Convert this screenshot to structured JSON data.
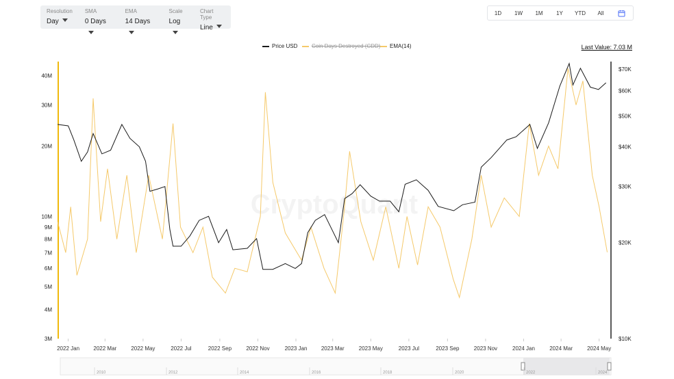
{
  "controls": [
    {
      "label": "Resolution",
      "value": "Day"
    },
    {
      "label": "SMA",
      "value": "0 Days"
    },
    {
      "label": "EMA",
      "value": "14 Days"
    },
    {
      "label": "Scale",
      "value": "Log"
    },
    {
      "label": "Chart Type",
      "value": "Line"
    }
  ],
  "range_buttons": [
    "1D",
    "1W",
    "1M",
    "1Y",
    "YTD",
    "All"
  ],
  "legend": [
    {
      "name": "Price USD",
      "color": "#1a1a1a",
      "disabled": false
    },
    {
      "name": "Coin Days Destroyed (CDD)",
      "color": "#f5c96a",
      "disabled": true
    },
    {
      "name": "EMA(14)",
      "color": "#f5c96a",
      "disabled": false
    }
  ],
  "last_value": "Last Value: 7.03 M",
  "watermark": "CryptoQuant",
  "navigator_labels": [
    "2010",
    "2012",
    "2014",
    "2016",
    "2018",
    "2020",
    "2022",
    "2024"
  ],
  "colors": {
    "price": "#1a1a1a",
    "ema": "#f5c96a",
    "left_axis_line": "#f0b90b",
    "right_axis_line": "#222222"
  },
  "chart_data": {
    "type": "line",
    "scale": "log",
    "x_ticks": [
      "2022 Jan",
      "2022 Mar",
      "2022 May",
      "2022 Jul",
      "2022 Sep",
      "2022 Nov",
      "2023 Jan",
      "2023 Mar",
      "2023 May",
      "2023 Jul",
      "2023 Sep",
      "2023 Nov",
      "2024 Jan",
      "2024 Mar",
      "2024 May"
    ],
    "x_tick_dates": [
      "2022-01",
      "2022-03",
      "2022-05",
      "2022-07",
      "2022-09",
      "2022-11",
      "2023-01",
      "2023-03",
      "2023-05",
      "2023-07",
      "2023-09",
      "2023-11",
      "2024-01",
      "2024-03",
      "2024-05"
    ],
    "left_axis": {
      "ticks": [
        "3M",
        "4M",
        "5M",
        "6M",
        "7M",
        "8M",
        "9M",
        "10M",
        "20M",
        "30M",
        "40M"
      ],
      "tick_values": [
        3000000,
        4000000,
        5000000,
        6000000,
        7000000,
        8000000,
        9000000,
        10000000,
        20000000,
        30000000,
        40000000
      ],
      "range": [
        3000000,
        46000000
      ]
    },
    "right_axis": {
      "ticks": [
        "$10K",
        "$20K",
        "$30K",
        "$40K",
        "$50K",
        "$60K",
        "$70K"
      ],
      "tick_values": [
        10000,
        20000,
        30000,
        40000,
        50000,
        60000,
        70000
      ],
      "range": [
        10000,
        74000
      ]
    },
    "series": [
      {
        "name": "Price USD",
        "axis": "right",
        "points": [
          [
            "2021-12-15",
            47000
          ],
          [
            "2022-01-01",
            46500
          ],
          [
            "2022-01-10",
            42000
          ],
          [
            "2022-01-22",
            36000
          ],
          [
            "2022-02-01",
            38500
          ],
          [
            "2022-02-10",
            44000
          ],
          [
            "2022-02-24",
            38000
          ],
          [
            "2022-03-10",
            39000
          ],
          [
            "2022-03-28",
            47000
          ],
          [
            "2022-04-10",
            42500
          ],
          [
            "2022-04-25",
            40000
          ],
          [
            "2022-05-05",
            36000
          ],
          [
            "2022-05-12",
            29000
          ],
          [
            "2022-05-25",
            29500
          ],
          [
            "2022-06-05",
            30000
          ],
          [
            "2022-06-13",
            22000
          ],
          [
            "2022-06-18",
            19500
          ],
          [
            "2022-07-01",
            19500
          ],
          [
            "2022-07-15",
            21000
          ],
          [
            "2022-07-30",
            23500
          ],
          [
            "2022-08-14",
            24200
          ],
          [
            "2022-08-30",
            20000
          ],
          [
            "2022-09-12",
            22000
          ],
          [
            "2022-09-22",
            19000
          ],
          [
            "2022-10-15",
            19200
          ],
          [
            "2022-10-30",
            20600
          ],
          [
            "2022-11-09",
            16500
          ],
          [
            "2022-11-25",
            16500
          ],
          [
            "2022-12-15",
            17200
          ],
          [
            "2022-12-31",
            16600
          ],
          [
            "2023-01-10",
            17200
          ],
          [
            "2023-01-20",
            21500
          ],
          [
            "2023-02-01",
            23500
          ],
          [
            "2023-02-16",
            24500
          ],
          [
            "2023-03-10",
            20000
          ],
          [
            "2023-03-20",
            27500
          ],
          [
            "2023-04-01",
            28500
          ],
          [
            "2023-04-14",
            30400
          ],
          [
            "2023-05-01",
            28000
          ],
          [
            "2023-05-15",
            27000
          ],
          [
            "2023-06-01",
            27000
          ],
          [
            "2023-06-15",
            25000
          ],
          [
            "2023-06-25",
            30500
          ],
          [
            "2023-07-13",
            31500
          ],
          [
            "2023-08-01",
            29200
          ],
          [
            "2023-08-17",
            26000
          ],
          [
            "2023-09-11",
            25200
          ],
          [
            "2023-09-25",
            26300
          ],
          [
            "2023-10-15",
            26800
          ],
          [
            "2023-10-25",
            34500
          ],
          [
            "2023-11-10",
            37000
          ],
          [
            "2023-12-05",
            42000
          ],
          [
            "2023-12-20",
            43000
          ],
          [
            "2024-01-11",
            47000
          ],
          [
            "2024-01-23",
            39500
          ],
          [
            "2024-02-10",
            47500
          ],
          [
            "2024-02-28",
            62000
          ],
          [
            "2024-03-14",
            73000
          ],
          [
            "2024-03-20",
            62500
          ],
          [
            "2024-04-01",
            70500
          ],
          [
            "2024-04-17",
            61500
          ],
          [
            "2024-04-30",
            60500
          ],
          [
            "2024-05-12",
            63500
          ]
        ]
      },
      {
        "name": "EMA(14)",
        "axis": "left",
        "points": [
          [
            "2021-12-15",
            9500000
          ],
          [
            "2021-12-28",
            7000000
          ],
          [
            "2022-01-05",
            11000000
          ],
          [
            "2022-01-15",
            5600000
          ],
          [
            "2022-02-01",
            8000000
          ],
          [
            "2022-02-10",
            32000000
          ],
          [
            "2022-02-22",
            9500000
          ],
          [
            "2022-03-05",
            16000000
          ],
          [
            "2022-03-20",
            8000000
          ],
          [
            "2022-04-05",
            15000000
          ],
          [
            "2022-04-20",
            7000000
          ],
          [
            "2022-05-10",
            15000000
          ],
          [
            "2022-06-01",
            8000000
          ],
          [
            "2022-06-18",
            25000000
          ],
          [
            "2022-06-30",
            9000000
          ],
          [
            "2022-07-20",
            7000000
          ],
          [
            "2022-08-05",
            9000000
          ],
          [
            "2022-08-20",
            5500000
          ],
          [
            "2022-09-10",
            4700000
          ],
          [
            "2022-09-25",
            6000000
          ],
          [
            "2022-10-15",
            5800000
          ],
          [
            "2022-11-05",
            10000000
          ],
          [
            "2022-11-13",
            34000000
          ],
          [
            "2022-11-25",
            14000000
          ],
          [
            "2022-12-15",
            8500000
          ],
          [
            "2023-01-10",
            6500000
          ],
          [
            "2023-01-25",
            9000000
          ],
          [
            "2023-02-15",
            6000000
          ],
          [
            "2023-03-05",
            4700000
          ],
          [
            "2023-03-20",
            11000000
          ],
          [
            "2023-03-28",
            19000000
          ],
          [
            "2023-04-15",
            9500000
          ],
          [
            "2023-05-05",
            6500000
          ],
          [
            "2023-05-25",
            11000000
          ],
          [
            "2023-06-15",
            6000000
          ],
          [
            "2023-06-28",
            10000000
          ],
          [
            "2023-07-15",
            6200000
          ],
          [
            "2023-08-01",
            11000000
          ],
          [
            "2023-08-20",
            9000000
          ],
          [
            "2023-09-10",
            5400000
          ],
          [
            "2023-09-20",
            4500000
          ],
          [
            "2023-10-10",
            8000000
          ],
          [
            "2023-10-25",
            15000000
          ],
          [
            "2023-11-10",
            9000000
          ],
          [
            "2023-12-01",
            12000000
          ],
          [
            "2023-12-25",
            10000000
          ],
          [
            "2024-01-10",
            25000000
          ],
          [
            "2024-01-25",
            15000000
          ],
          [
            "2024-02-10",
            20000000
          ],
          [
            "2024-02-25",
            16000000
          ],
          [
            "2024-03-12",
            43000000
          ],
          [
            "2024-03-25",
            30000000
          ],
          [
            "2024-04-05",
            38000000
          ],
          [
            "2024-04-20",
            15000000
          ],
          [
            "2024-05-01",
            11000000
          ],
          [
            "2024-05-14",
            7030000
          ]
        ]
      }
    ],
    "navigator_range": [
      "2022-01",
      "2024-05"
    ],
    "legend_position": "top-center"
  }
}
